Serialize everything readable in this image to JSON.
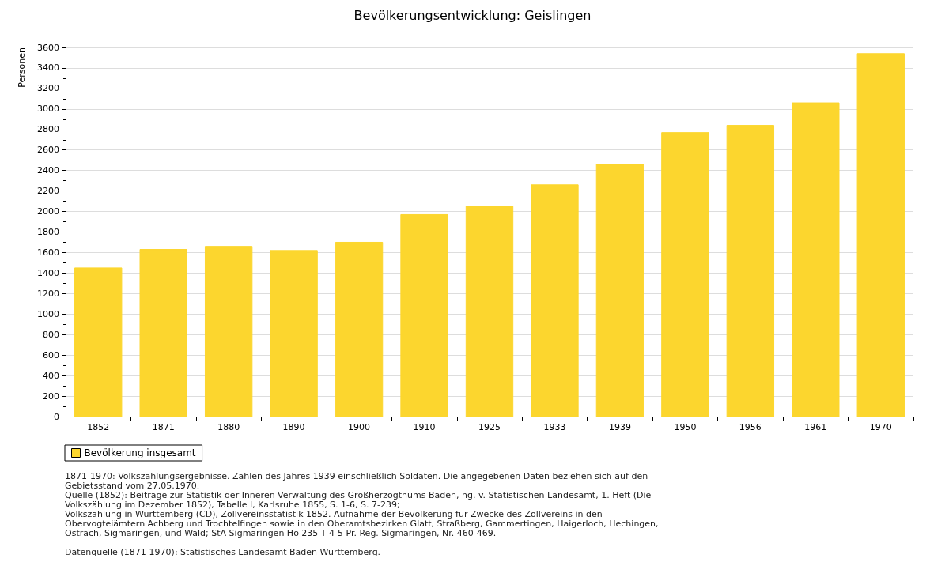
{
  "chart_data": {
    "type": "bar",
    "title": "Bevölkerungsentwicklung: Geislingen",
    "ylabel": "Personen",
    "categories": [
      "1852",
      "1871",
      "1880",
      "1890",
      "1900",
      "1910",
      "1925",
      "1933",
      "1939",
      "1950",
      "1956",
      "1961",
      "1970"
    ],
    "series": [
      {
        "name": "Bevölkerung insgesamt",
        "color": "#fcd62e",
        "values": [
          1450,
          1630,
          1660,
          1620,
          1700,
          1970,
          2050,
          2260,
          2460,
          2770,
          2840,
          3060,
          3540
        ]
      }
    ],
    "ylim": [
      0,
      3600
    ],
    "yticks": [
      0,
      200,
      400,
      600,
      800,
      1000,
      1200,
      1400,
      1600,
      1800,
      2000,
      2200,
      2400,
      2600,
      2800,
      3000,
      3200,
      3400,
      3600
    ],
    "grid": "y",
    "legend": "bottom left",
    "annotations": [
      "1871-1970: Volkszählungsergebnisse. Zahlen des Jahres 1939 einschließlich Soldaten. Die angegebenen Daten beziehen sich auf den Gebietsstand vom 27.05.1970.",
      "Quelle (1852): Beiträge zur Statistik der Inneren Verwaltung des Großherzogthums Baden, hg. v. Statistischen Landesamt, 1. Heft (Die Volkszählung im Dezember 1852), Tabelle I, Karlsruhe 1855, S. 1-6, S. 7-239;",
      "Volkszählung in Württemberg (CD), Zollvereinsstatistik 1852. Aufnahme der Bevölkerung für Zwecke des Zollvereins in den Obervogteiämtern Achberg und Trochtelfingen sowie in den Oberamtsbezirken Glatt, Straßberg, Gammertingen, Haigerloch, Hechingen, Ostrach, Sigmaringen, und Wald; StA Sigmaringen Ho 235 T 4-5 Pr. Reg. Sigmaringen, Nr. 460-469.",
      "Datenquelle (1871-1970): Statistisches Landesamt Baden-Württemberg."
    ]
  }
}
